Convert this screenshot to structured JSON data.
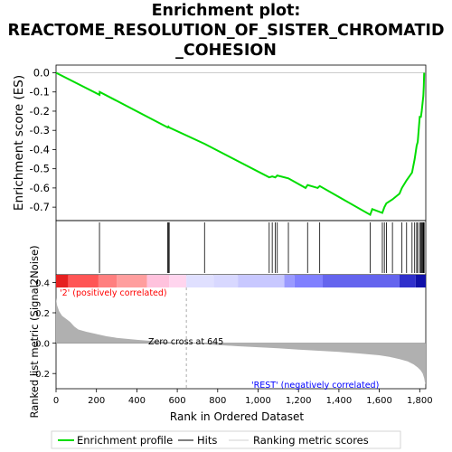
{
  "title": {
    "line1": "Enrichment plot:",
    "line2": "REACTOME_RESOLUTION_OF_SISTER_CHROMATID",
    "line3": "_COHESION"
  },
  "colors": {
    "es_line": "#00dd00",
    "hits": "#000000",
    "metric_fill": "#b0b0b0",
    "pos_label": "#ff0000",
    "neg_label": "#0000ff",
    "zero_cross": "#aaaaaa"
  },
  "labels": {
    "pos_corr": "'2' (positively correlated)",
    "neg_corr": "'REST' (negatively correlated)",
    "zero_cross": "Zero cross at 645"
  },
  "legend": {
    "enrichment_profile": "Enrichment profile",
    "hits": "Hits",
    "ranking_metric": "Ranking metric scores"
  },
  "chart_data": [
    {
      "type": "line",
      "name": "enrichment-profile",
      "ylabel": "Enrichment score (ES)",
      "xlim": [
        0,
        1830
      ],
      "ylim": [
        -0.77,
        0.04
      ],
      "yticks": [
        0.0,
        -0.1,
        -0.2,
        -0.3,
        -0.4,
        -0.5,
        -0.6,
        -0.7
      ],
      "ytick_labels": [
        "0.0",
        "-0.1",
        "-0.2",
        "-0.3",
        "-0.4",
        "-0.5",
        "-0.6",
        "-0.7"
      ],
      "grid": false,
      "x": [
        0,
        215,
        216,
        553,
        556,
        560,
        735,
        1055,
        1070,
        1085,
        1095,
        1150,
        1235,
        1245,
        1295,
        1305,
        1555,
        1565,
        1615,
        1625,
        1635,
        1665,
        1700,
        1712,
        1735,
        1762,
        1775,
        1785,
        1790,
        1800,
        1806,
        1810,
        1814,
        1818,
        1820,
        1822
      ],
      "y": [
        0.0,
        -0.115,
        -0.1,
        -0.285,
        -0.28,
        -0.285,
        -0.37,
        -0.545,
        -0.54,
        -0.545,
        -0.535,
        -0.55,
        -0.6,
        -0.585,
        -0.6,
        -0.59,
        -0.74,
        -0.71,
        -0.73,
        -0.7,
        -0.68,
        -0.66,
        -0.63,
        -0.6,
        -0.56,
        -0.52,
        -0.45,
        -0.38,
        -0.36,
        -0.23,
        -0.23,
        -0.2,
        -0.16,
        -0.12,
        -0.07,
        0.0
      ]
    },
    {
      "type": "scatter",
      "name": "hits",
      "x": [
        215,
        553,
        556,
        560,
        735,
        1055,
        1070,
        1085,
        1095,
        1150,
        1245,
        1305,
        1555,
        1615,
        1625,
        1635,
        1665,
        1712,
        1735,
        1762,
        1775,
        1785,
        1790,
        1800,
        1806,
        1810,
        1814,
        1818,
        1820,
        1822
      ]
    },
    {
      "type": "area",
      "name": "ranking-metric",
      "ylabel": "Ranked list metric (Signal2Noise)",
      "xlabel": "Rank in Ordered Dataset",
      "xlim": [
        0,
        1830
      ],
      "ylim": [
        -0.3,
        0.45
      ],
      "yticks": [
        0.4,
        0.2,
        0.0,
        -0.2
      ],
      "ytick_labels": [
        "0.4",
        "0.2",
        "0.0",
        "-0.2"
      ],
      "xticks": [
        0,
        200,
        400,
        600,
        800,
        1000,
        1200,
        1400,
        1600,
        1800
      ],
      "xtick_labels": [
        "0",
        "200",
        "400",
        "600",
        "800",
        "1,000",
        "1,200",
        "1,400",
        "1,600",
        "1,800"
      ],
      "zero_cross": 645,
      "x": [
        0,
        5,
        15,
        30,
        50,
        70,
        90,
        110,
        150,
        200,
        250,
        300,
        400,
        500,
        600,
        645,
        700,
        800,
        900,
        1000,
        1100,
        1200,
        1300,
        1400,
        1500,
        1600,
        1650,
        1700,
        1740,
        1770,
        1790,
        1805,
        1815,
        1822,
        1826,
        1830
      ],
      "y": [
        0.3,
        0.25,
        0.21,
        0.18,
        0.16,
        0.14,
        0.11,
        0.09,
        0.075,
        0.06,
        0.045,
        0.035,
        0.022,
        0.012,
        0.004,
        0.0,
        -0.004,
        -0.012,
        -0.02,
        -0.027,
        -0.034,
        -0.042,
        -0.05,
        -0.058,
        -0.068,
        -0.08,
        -0.09,
        -0.105,
        -0.12,
        -0.14,
        -0.16,
        -0.18,
        -0.2,
        -0.23,
        -0.26,
        -0.27
      ]
    },
    {
      "type": "heatmap",
      "name": "rank-color-bar",
      "segments": [
        {
          "x0": 0,
          "x1": 60,
          "color": "#e62020"
        },
        {
          "x0": 60,
          "x1": 210,
          "color": "#ff5555"
        },
        {
          "x0": 210,
          "x1": 300,
          "color": "#ff7f7f"
        },
        {
          "x0": 300,
          "x1": 450,
          "color": "#ff9e9e"
        },
        {
          "x0": 450,
          "x1": 560,
          "color": "#ffc2dd"
        },
        {
          "x0": 560,
          "x1": 645,
          "color": "#ffd5ee"
        },
        {
          "x0": 645,
          "x1": 780,
          "color": "#e0e0ff"
        },
        {
          "x0": 780,
          "x1": 900,
          "color": "#d8d8ff"
        },
        {
          "x0": 900,
          "x1": 1130,
          "color": "#c8c8ff"
        },
        {
          "x0": 1130,
          "x1": 1180,
          "color": "#9a9aff"
        },
        {
          "x0": 1180,
          "x1": 1320,
          "color": "#8080ff"
        },
        {
          "x0": 1320,
          "x1": 1700,
          "color": "#6464ee"
        },
        {
          "x0": 1700,
          "x1": 1780,
          "color": "#3030cc"
        },
        {
          "x0": 1780,
          "x1": 1830,
          "color": "#1010a8"
        }
      ]
    }
  ]
}
